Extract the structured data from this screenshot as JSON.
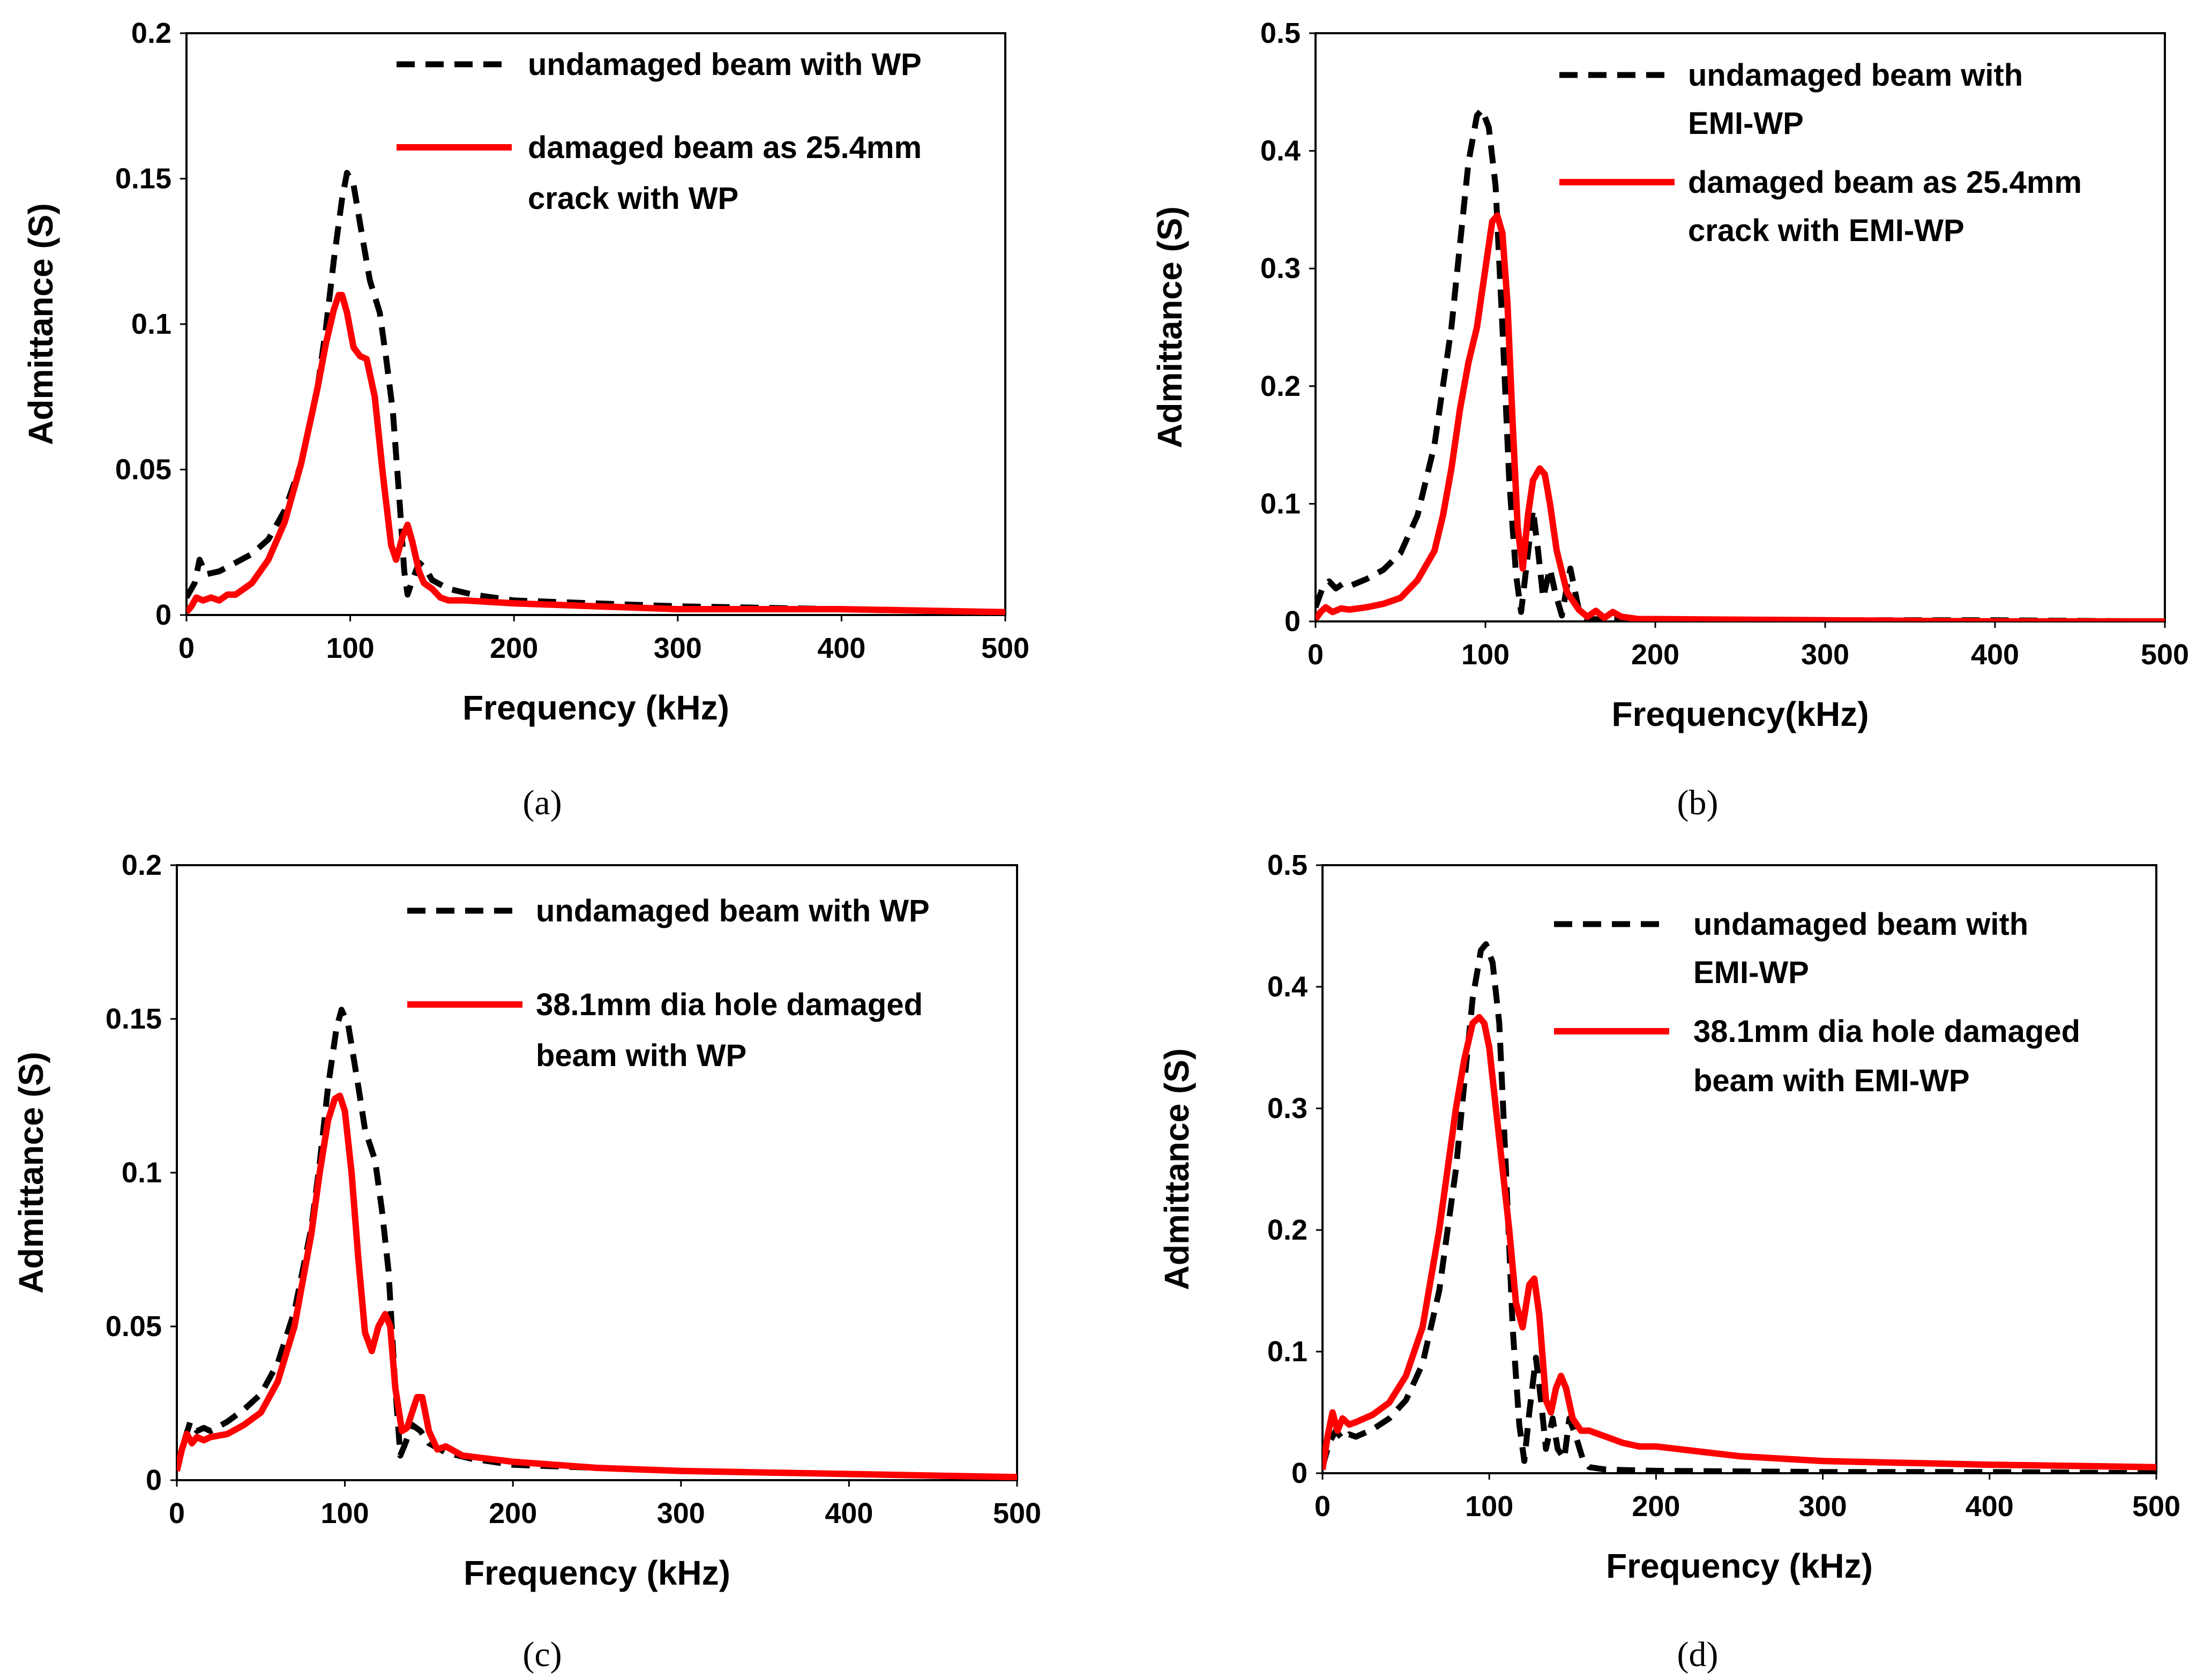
{
  "colors": {
    "undamaged": "#000000",
    "damaged": "#ff0000"
  },
  "chart_data": [
    {
      "type": "line",
      "panel_label": "(a)",
      "xlabel": "Frequency (kHz)",
      "ylabel": "Admittance (S)",
      "xlim": [
        0,
        500
      ],
      "ylim": [
        0,
        0.2
      ],
      "xticks": [
        "0",
        "100",
        "200",
        "300",
        "400",
        "500"
      ],
      "yticks": [
        "0",
        "0.05",
        "0.1",
        "0.15",
        "0.2"
      ],
      "legend_position": "top-right",
      "series": [
        {
          "name": "undamaged beam with WP",
          "legend_lines": [
            "undamaged beam with WP"
          ],
          "style": "dashed",
          "color": "#000000",
          "x": [
            0,
            5,
            8,
            12,
            20,
            30,
            40,
            50,
            60,
            70,
            80,
            85,
            90,
            95,
            98,
            102,
            108,
            112,
            118,
            122,
            126,
            130,
            133,
            135,
            138,
            142,
            146,
            150,
            160,
            175,
            200,
            250,
            300,
            400,
            500
          ],
          "y": [
            0.006,
            0.011,
            0.019,
            0.014,
            0.015,
            0.018,
            0.021,
            0.026,
            0.036,
            0.052,
            0.078,
            0.098,
            0.122,
            0.143,
            0.152,
            0.148,
            0.128,
            0.115,
            0.104,
            0.088,
            0.07,
            0.04,
            0.015,
            0.007,
            0.012,
            0.018,
            0.016,
            0.012,
            0.009,
            0.007,
            0.005,
            0.004,
            0.003,
            0.002,
            0.001
          ]
        },
        {
          "name": "damaged beam as 25.4mm crack with WP",
          "legend_lines": [
            "damaged beam as 25.4mm",
            "crack with WP"
          ],
          "style": "solid",
          "color": "#ff0000",
          "x": [
            0,
            3,
            6,
            10,
            15,
            20,
            25,
            30,
            40,
            50,
            60,
            70,
            80,
            85,
            90,
            93,
            95,
            98,
            102,
            106,
            110,
            115,
            120,
            125,
            128,
            132,
            135,
            138,
            142,
            145,
            150,
            155,
            160,
            170,
            200,
            250,
            300,
            400,
            500
          ],
          "y": [
            0.001,
            0.003,
            0.006,
            0.005,
            0.006,
            0.005,
            0.007,
            0.007,
            0.011,
            0.019,
            0.032,
            0.052,
            0.078,
            0.093,
            0.105,
            0.11,
            0.11,
            0.104,
            0.092,
            0.089,
            0.088,
            0.075,
            0.048,
            0.024,
            0.019,
            0.027,
            0.031,
            0.025,
            0.015,
            0.011,
            0.009,
            0.006,
            0.005,
            0.005,
            0.004,
            0.003,
            0.002,
            0.002,
            0.001
          ]
        }
      ]
    },
    {
      "type": "line",
      "panel_label": "(b)",
      "xlabel": "Frequency(kHz)",
      "ylabel": "Admittance (S)",
      "xlim": [
        0,
        500
      ],
      "ylim": [
        0,
        0.5
      ],
      "xticks": [
        "0",
        "100",
        "200",
        "300",
        "400",
        "500"
      ],
      "yticks": [
        "0",
        "0.1",
        "0.2",
        "0.3",
        "0.4",
        "0.5"
      ],
      "legend_position": "top-right",
      "series": [
        {
          "name": "undamaged beam with EMI-WP",
          "legend_lines": [
            " undamaged beam with",
            "EMI-WP"
          ],
          "style": "dashed",
          "color": "#000000",
          "x": [
            0,
            4,
            8,
            12,
            16,
            20,
            30,
            40,
            50,
            60,
            70,
            80,
            85,
            90,
            95,
            98,
            102,
            106,
            110,
            114,
            118,
            121,
            124,
            128,
            131,
            134,
            138,
            141,
            145,
            148,
            150,
            155,
            160,
            200,
            300,
            400,
            500
          ],
          "y": [
            0.012,
            0.028,
            0.034,
            0.028,
            0.032,
            0.03,
            0.036,
            0.044,
            0.058,
            0.09,
            0.15,
            0.25,
            0.32,
            0.39,
            0.43,
            0.435,
            0.42,
            0.37,
            0.25,
            0.12,
            0.04,
            0.008,
            0.045,
            0.095,
            0.06,
            0.02,
            0.045,
            0.025,
            0.005,
            0.03,
            0.045,
            0.01,
            0.002,
            0.001,
            0.001,
            0.001,
            0.0
          ]
        },
        {
          "name": "damaged beam as 25.4mm crack with EMI-WP",
          "legend_lines": [
            "damaged beam as 25.4mm",
            "crack with EMI-WP"
          ],
          "style": "solid",
          "color": "#ff0000",
          "x": [
            0,
            3,
            6,
            10,
            15,
            20,
            30,
            40,
            50,
            60,
            70,
            75,
            80,
            85,
            90,
            95,
            100,
            104,
            107,
            110,
            113,
            116,
            119,
            122,
            125,
            128,
            132,
            135,
            138,
            142,
            148,
            155,
            160,
            165,
            170,
            175,
            180,
            190,
            200,
            300,
            400,
            500
          ],
          "y": [
            0.002,
            0.008,
            0.012,
            0.008,
            0.011,
            0.01,
            0.012,
            0.015,
            0.02,
            0.035,
            0.06,
            0.09,
            0.13,
            0.18,
            0.22,
            0.25,
            0.3,
            0.34,
            0.345,
            0.33,
            0.27,
            0.17,
            0.08,
            0.045,
            0.09,
            0.12,
            0.13,
            0.125,
            0.1,
            0.06,
            0.025,
            0.01,
            0.004,
            0.009,
            0.003,
            0.008,
            0.004,
            0.002,
            0.002,
            0.001,
            0.0,
            0.0
          ]
        }
      ]
    },
    {
      "type": "line",
      "panel_label": "(c)",
      "xlabel": "Frequency (kHz)",
      "ylabel": "Admittance (S)",
      "xlim": [
        0,
        500
      ],
      "ylim": [
        0,
        0.2
      ],
      "xticks": [
        "0",
        "100",
        "200",
        "300",
        "400",
        "500"
      ],
      "yticks": [
        "0",
        "0.05",
        "0.1",
        "0.15",
        "0.2"
      ],
      "legend_position": "top-right",
      "series": [
        {
          "name": "undamaged beam with WP",
          "legend_lines": [
            "undamaged beam with WP"
          ],
          "style": "dashed",
          "color": "#000000",
          "x": [
            0,
            4,
            8,
            12,
            16,
            20,
            30,
            40,
            50,
            60,
            70,
            80,
            85,
            90,
            95,
            98,
            102,
            108,
            112,
            118,
            122,
            126,
            130,
            133,
            136,
            140,
            145,
            150,
            160,
            175,
            200,
            250,
            300,
            400,
            500
          ],
          "y": [
            0.004,
            0.012,
            0.019,
            0.016,
            0.017,
            0.016,
            0.019,
            0.023,
            0.028,
            0.038,
            0.055,
            0.082,
            0.103,
            0.128,
            0.147,
            0.153,
            0.148,
            0.128,
            0.114,
            0.104,
            0.088,
            0.068,
            0.03,
            0.008,
            0.012,
            0.018,
            0.016,
            0.012,
            0.009,
            0.007,
            0.005,
            0.004,
            0.003,
            0.002,
            0.001
          ]
        },
        {
          "name": "38.1mm dia hole damaged beam with WP",
          "legend_lines": [
            " 38.1mm dia hole damaged",
            "beam with WP"
          ],
          "style": "solid",
          "color": "#ff0000",
          "x": [
            0,
            3,
            6,
            9,
            12,
            16,
            20,
            30,
            40,
            50,
            60,
            70,
            80,
            85,
            90,
            94,
            97,
            100,
            104,
            108,
            112,
            116,
            120,
            124,
            127,
            130,
            134,
            137,
            140,
            143,
            146,
            150,
            155,
            160,
            170,
            200,
            250,
            300,
            400,
            500
          ],
          "y": [
            0.003,
            0.01,
            0.015,
            0.012,
            0.014,
            0.013,
            0.014,
            0.015,
            0.018,
            0.022,
            0.032,
            0.05,
            0.08,
            0.1,
            0.117,
            0.124,
            0.125,
            0.12,
            0.1,
            0.072,
            0.048,
            0.042,
            0.05,
            0.054,
            0.05,
            0.03,
            0.016,
            0.017,
            0.022,
            0.027,
            0.027,
            0.016,
            0.01,
            0.011,
            0.008,
            0.006,
            0.004,
            0.003,
            0.002,
            0.001
          ]
        }
      ]
    },
    {
      "type": "line",
      "panel_label": "(d)",
      "xlabel": "Frequency (kHz)",
      "ylabel": "Admittance (S)",
      "xlim": [
        0,
        500
      ],
      "ylim": [
        0,
        0.5
      ],
      "xticks": [
        "0",
        "100",
        "200",
        "300",
        "400",
        "500"
      ],
      "yticks": [
        "0",
        "0.1",
        "0.2",
        "0.3",
        "0.4",
        "0.5"
      ],
      "legend_position": "top-right",
      "series": [
        {
          "name": "undamaged beam with EMI-WP",
          "legend_lines": [
            "undamaged beam with",
            "EMI-WP"
          ],
          "style": "dashed",
          "color": "#000000",
          "x": [
            0,
            4,
            8,
            12,
            16,
            20,
            30,
            40,
            50,
            60,
            70,
            80,
            85,
            90,
            95,
            98,
            102,
            106,
            110,
            114,
            118,
            121,
            124,
            128,
            131,
            134,
            138,
            141,
            145,
            148,
            152,
            156,
            160,
            170,
            200,
            300,
            400,
            500
          ],
          "y": [
            0.005,
            0.025,
            0.035,
            0.028,
            0.032,
            0.03,
            0.036,
            0.045,
            0.06,
            0.09,
            0.15,
            0.25,
            0.32,
            0.39,
            0.43,
            0.435,
            0.42,
            0.37,
            0.25,
            0.12,
            0.04,
            0.01,
            0.05,
            0.095,
            0.06,
            0.02,
            0.045,
            0.02,
            0.012,
            0.045,
            0.03,
            0.012,
            0.005,
            0.003,
            0.002,
            0.001,
            0.001,
            0.0
          ]
        },
        {
          "name": "38.1mm dia hole damaged beam with EMI-WP",
          "legend_lines": [
            " 38.1mm dia hole damaged",
            "beam with EMI-WP"
          ],
          "style": "solid",
          "color": "#ff0000",
          "x": [
            0,
            3,
            6,
            9,
            12,
            16,
            20,
            30,
            40,
            50,
            60,
            70,
            80,
            85,
            90,
            94,
            97,
            100,
            104,
            108,
            112,
            116,
            120,
            124,
            127,
            130,
            134,
            137,
            140,
            143,
            146,
            150,
            155,
            160,
            170,
            180,
            190,
            200,
            250,
            300,
            400,
            500
          ],
          "y": [
            0.003,
            0.03,
            0.05,
            0.035,
            0.045,
            0.04,
            0.042,
            0.048,
            0.058,
            0.08,
            0.12,
            0.2,
            0.3,
            0.34,
            0.37,
            0.375,
            0.37,
            0.35,
            0.3,
            0.25,
            0.2,
            0.14,
            0.12,
            0.155,
            0.16,
            0.13,
            0.06,
            0.05,
            0.07,
            0.08,
            0.07,
            0.045,
            0.035,
            0.035,
            0.03,
            0.025,
            0.022,
            0.022,
            0.014,
            0.01,
            0.007,
            0.005
          ]
        }
      ]
    }
  ]
}
